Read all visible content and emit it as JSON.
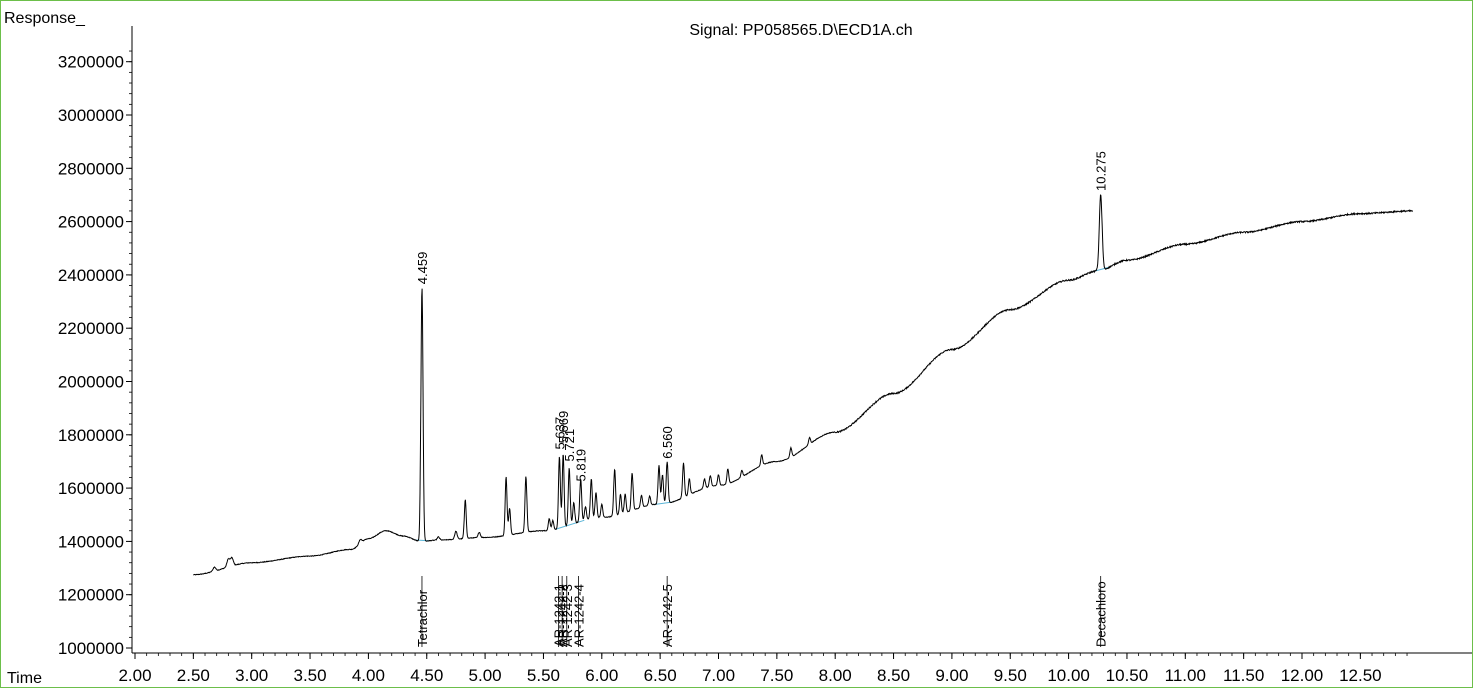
{
  "chart_data": {
    "type": "line",
    "title": "Signal: PP058565.D\\ECD1A.ch",
    "xlabel": "Time",
    "ylabel": "Response_",
    "xlim": [
      2.0,
      12.95
    ],
    "ylim": [
      1000000,
      3250000
    ],
    "x_ticks": [
      "2.00",
      "2.50",
      "3.00",
      "3.50",
      "4.00",
      "4.50",
      "5.00",
      "5.50",
      "6.00",
      "6.50",
      "7.00",
      "7.50",
      "8.00",
      "8.50",
      "9.00",
      "9.50",
      "10.00",
      "10.50",
      "11.00",
      "11.50",
      "12.00",
      "12.50"
    ],
    "y_ticks": [
      "1000000",
      "1200000",
      "1400000",
      "1600000",
      "1800000",
      "2000000",
      "2200000",
      "2400000",
      "2600000",
      "2800000",
      "3000000",
      "3200000"
    ],
    "grid": false,
    "legend": "none",
    "colors": {
      "trace": "#000000",
      "baseline": "#5ab4d6",
      "frame": "#6cbf4a"
    },
    "baseline": [
      [
        2.5,
        1275000
      ],
      [
        3.0,
        1320000
      ],
      [
        3.5,
        1345000
      ],
      [
        3.85,
        1370000
      ],
      [
        4.0,
        1410000
      ],
      [
        4.15,
        1440000
      ],
      [
        4.3,
        1420000
      ],
      [
        4.45,
        1400000
      ],
      [
        4.6,
        1405000
      ],
      [
        5.0,
        1415000
      ],
      [
        5.5,
        1440000
      ],
      [
        6.0,
        1490000
      ],
      [
        6.5,
        1540000
      ],
      [
        7.0,
        1610000
      ],
      [
        7.5,
        1700000
      ],
      [
        8.0,
        1810000
      ],
      [
        8.5,
        1955000
      ],
      [
        9.0,
        2120000
      ],
      [
        9.5,
        2270000
      ],
      [
        10.0,
        2380000
      ],
      [
        10.25,
        2415000
      ],
      [
        10.5,
        2455000
      ],
      [
        11.0,
        2515000
      ],
      [
        11.5,
        2560000
      ],
      [
        12.0,
        2600000
      ],
      [
        12.5,
        2630000
      ],
      [
        12.95,
        2640000
      ]
    ],
    "peaks": [
      {
        "x": 2.68,
        "h": 15000,
        "w": 0.012
      },
      {
        "x": 2.8,
        "h": 30000,
        "w": 0.012
      },
      {
        "x": 2.83,
        "h": 30000,
        "w": 0.012
      },
      {
        "x": 3.93,
        "h": 15000,
        "w": 0.012
      },
      {
        "x": 4.459,
        "h": 955000,
        "w": 0.009
      },
      {
        "x": 4.6,
        "h": 12000,
        "w": 0.01
      },
      {
        "x": 4.75,
        "h": 30000,
        "w": 0.01
      },
      {
        "x": 4.83,
        "h": 145000,
        "w": 0.008
      },
      {
        "x": 4.95,
        "h": 20000,
        "w": 0.009
      },
      {
        "x": 5.18,
        "h": 220000,
        "w": 0.008
      },
      {
        "x": 5.21,
        "h": 100000,
        "w": 0.008
      },
      {
        "x": 5.35,
        "h": 210000,
        "w": 0.008
      },
      {
        "x": 5.55,
        "h": 45000,
        "w": 0.008
      },
      {
        "x": 5.58,
        "h": 35000,
        "w": 0.008
      },
      {
        "x": 5.637,
        "h": 270000,
        "w": 0.008
      },
      {
        "x": 5.669,
        "h": 275000,
        "w": 0.008
      },
      {
        "x": 5.721,
        "h": 215000,
        "w": 0.008
      },
      {
        "x": 5.76,
        "h": 80000,
        "w": 0.008
      },
      {
        "x": 5.819,
        "h": 160000,
        "w": 0.008
      },
      {
        "x": 5.86,
        "h": 50000,
        "w": 0.008
      },
      {
        "x": 5.91,
        "h": 150000,
        "w": 0.008
      },
      {
        "x": 5.95,
        "h": 95000,
        "w": 0.008
      },
      {
        "x": 6.0,
        "h": 50000,
        "w": 0.008
      },
      {
        "x": 6.11,
        "h": 175000,
        "w": 0.008
      },
      {
        "x": 6.16,
        "h": 75000,
        "w": 0.008
      },
      {
        "x": 6.2,
        "h": 70000,
        "w": 0.008
      },
      {
        "x": 6.26,
        "h": 140000,
        "w": 0.008
      },
      {
        "x": 6.34,
        "h": 45000,
        "w": 0.008
      },
      {
        "x": 6.41,
        "h": 35000,
        "w": 0.008
      },
      {
        "x": 6.49,
        "h": 145000,
        "w": 0.008
      },
      {
        "x": 6.52,
        "h": 110000,
        "w": 0.008
      },
      {
        "x": 6.56,
        "h": 155000,
        "w": 0.008
      },
      {
        "x": 6.7,
        "h": 130000,
        "w": 0.008
      },
      {
        "x": 6.75,
        "h": 60000,
        "w": 0.008
      },
      {
        "x": 6.88,
        "h": 35000,
        "w": 0.008
      },
      {
        "x": 6.93,
        "h": 40000,
        "w": 0.008
      },
      {
        "x": 7.0,
        "h": 40000,
        "w": 0.008
      },
      {
        "x": 7.08,
        "h": 55000,
        "w": 0.008
      },
      {
        "x": 7.2,
        "h": 25000,
        "w": 0.008
      },
      {
        "x": 7.37,
        "h": 40000,
        "w": 0.008
      },
      {
        "x": 7.62,
        "h": 35000,
        "w": 0.008
      },
      {
        "x": 7.78,
        "h": 25000,
        "w": 0.008
      },
      {
        "x": 10.275,
        "h": 285000,
        "w": 0.012
      }
    ],
    "peak_labels": [
      {
        "x": 4.459,
        "text": "4.459",
        "y": 2365000
      },
      {
        "x": 5.637,
        "text": "5.637",
        "y": 1745000
      },
      {
        "x": 5.669,
        "text": "5.669",
        "y": 1768000
      },
      {
        "x": 5.721,
        "text": "5.721",
        "y": 1700000
      },
      {
        "x": 5.819,
        "text": "5.819",
        "y": 1625000
      },
      {
        "x": 6.56,
        "text": "6.560",
        "y": 1710000
      },
      {
        "x": 10.275,
        "text": "10.275",
        "y": 2715000
      }
    ],
    "compound_labels": [
      {
        "x": 4.459,
        "text": "Tetrachlor"
      },
      {
        "x": 5.63,
        "text": "AR-1242-1"
      },
      {
        "x": 5.66,
        "text": "AR-1242-2"
      },
      {
        "x": 5.7,
        "text": "AR-1242-3"
      },
      {
        "x": 5.8,
        "text": "AR-1242-4"
      },
      {
        "x": 6.56,
        "text": "AR-1242-5"
      },
      {
        "x": 10.275,
        "text": "Decachloro"
      }
    ]
  }
}
